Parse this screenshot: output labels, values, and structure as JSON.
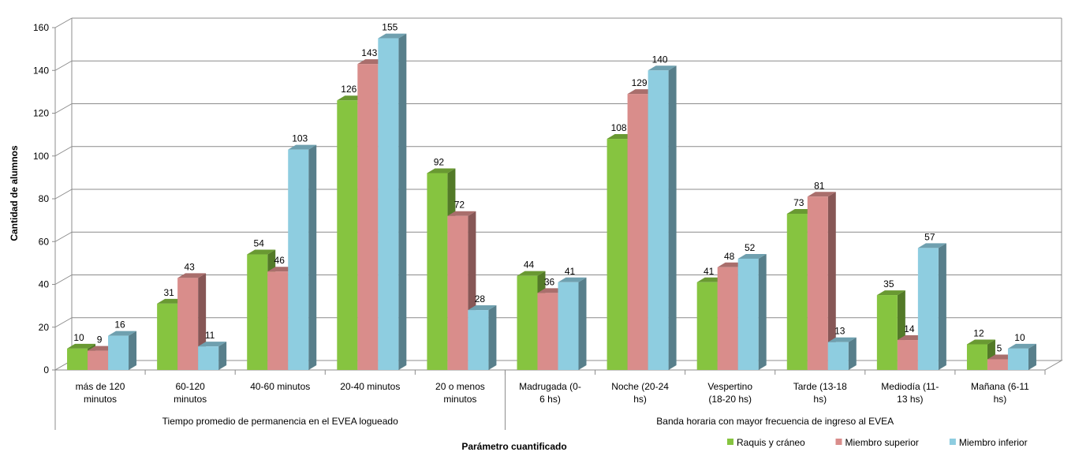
{
  "chart_data": {
    "type": "bar",
    "ylabel": "Cantidad de alumnos",
    "xlabel": "Parámetro cuantificado",
    "ylim": [
      0,
      160
    ],
    "yticks": [
      0,
      20,
      40,
      60,
      80,
      100,
      120,
      140,
      160
    ],
    "grid": true,
    "legend_position": "bottom-right",
    "categories": [
      [
        "más de 120",
        "minutos"
      ],
      [
        "60-120",
        "minutos"
      ],
      [
        "40-60 minutos"
      ],
      [
        "20-40 minutos"
      ],
      [
        "20 o menos",
        "minutos"
      ],
      [
        "Madrugada (0-",
        "6 hs)"
      ],
      [
        "Noche (20-24",
        "hs)"
      ],
      [
        "Vespertino",
        "(18-20 hs)"
      ],
      [
        "Tarde (13-18",
        "hs)"
      ],
      [
        "Mediodía (11-",
        "13 hs)"
      ],
      [
        "Mañana (6-11",
        "hs)"
      ]
    ],
    "groups": [
      {
        "label": "Tiempo promedio de permanencia en el EVEA logueado",
        "start": 0,
        "end": 4
      },
      {
        "label": "Banda horaria con mayor frecuencia de ingreso al EVEA",
        "start": 5,
        "end": 10
      }
    ],
    "series": [
      {
        "name": "Raquis y cráneo",
        "color": "#86c440",
        "values": [
          10,
          31,
          54,
          126,
          92,
          44,
          108,
          41,
          73,
          35,
          12
        ]
      },
      {
        "name": "Miembro superior",
        "color": "#d98d8b",
        "values": [
          9,
          43,
          46,
          143,
          72,
          36,
          129,
          48,
          81,
          14,
          5
        ]
      },
      {
        "name": "Miembro inferior",
        "color": "#8ecde0",
        "values": [
          16,
          11,
          103,
          155,
          28,
          41,
          140,
          52,
          13,
          57,
          10
        ]
      }
    ]
  }
}
